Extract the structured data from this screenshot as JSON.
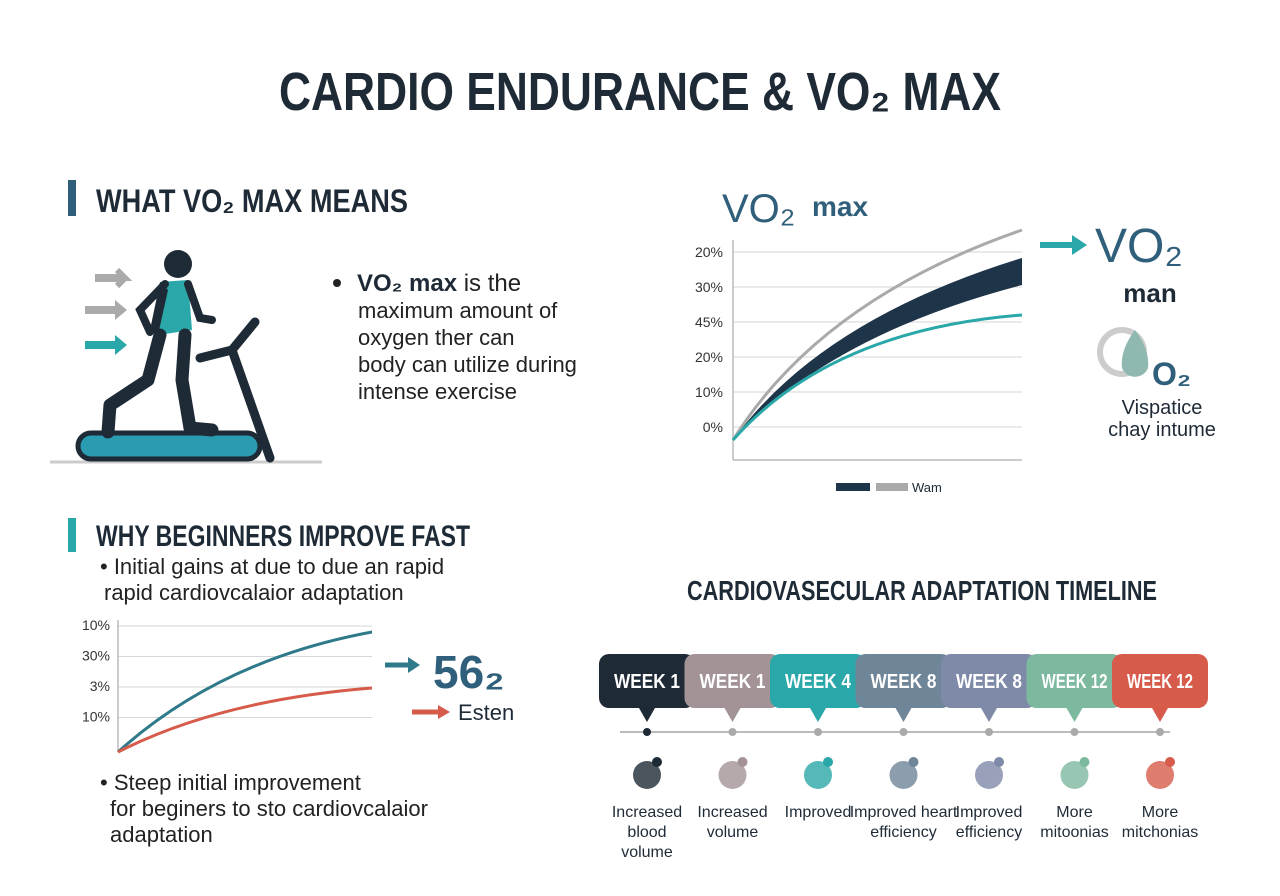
{
  "title": "CARDIO ENDURANCE & VO₂ MAX",
  "what_vo2": {
    "heading": "WHAT VO₂ MAX MEANS",
    "bullet_bold": "VO₂ max",
    "bullet_lines": [
      " is the",
      "maximum amount of",
      "oxygen ther can",
      "body can utilize during",
      "intense exercise"
    ]
  },
  "vo2_chart": {
    "title_main": "VO₂",
    "title_small": "max",
    "tick_labels": [
      "20%",
      "30%",
      "45%",
      "20%",
      "10%",
      "0%"
    ],
    "legend": "Wam",
    "side_title": "VO₂",
    "side_sub": "man",
    "icon_label": "O₂",
    "side_lines": [
      "Vispatice",
      "chay intume"
    ]
  },
  "beginners": {
    "heading": "WHY BEGINNERS IMPROVE FAST",
    "bullet1": [
      "• Initial gains at due to due an rapid",
      "rapid cardiovcalaior adaptation"
    ],
    "tick_labels": [
      "10%",
      "30%",
      "3%",
      "10%"
    ],
    "callout": "56₂",
    "callout_sub": "Esten",
    "bullet2": [
      "• Steep initial improvement",
      "for beginers to sto cardiovcalaior",
      "adaptation"
    ]
  },
  "timeline": {
    "title": "CARDIOVASECULAR ADAPTATION TIMELINE",
    "items": [
      {
        "week": "WEEK 1",
        "color": "#1e2a36",
        "label": [
          "Increased",
          "blood",
          "volume"
        ]
      },
      {
        "week": "WEEK 1",
        "color": "#a39396",
        "label": [
          "Increased",
          "volume"
        ]
      },
      {
        "week": "WEEK 4",
        "color": "#2aa7a8",
        "label": [
          "Improved"
        ]
      },
      {
        "week": "WEEK 8",
        "color": "#6f8598",
        "label": [
          "Improved heart",
          "efficiency"
        ]
      },
      {
        "week": "WEEK 8",
        "color": "#7f8aa9",
        "label": [
          "Improved",
          "efficiency"
        ]
      },
      {
        "week": "WEEK 12",
        "color": "#7db99f",
        "label": [
          "More",
          "mitoonias"
        ]
      },
      {
        "week": "WEEK 12",
        "color": "#d65b4a",
        "label": [
          "More",
          "mitchonias"
        ]
      }
    ]
  }
}
